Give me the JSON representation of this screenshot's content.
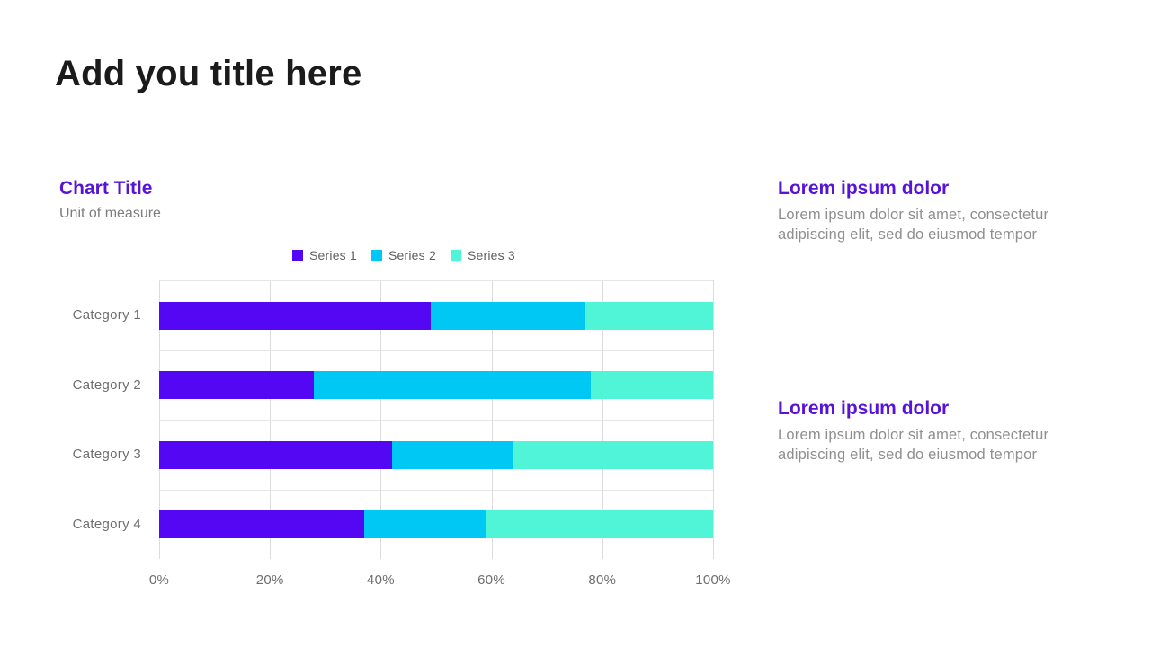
{
  "page": {
    "title": "Add you title here"
  },
  "chart": {
    "title": "Chart Title",
    "subtitle": "Unit of measure"
  },
  "chart_data": {
    "type": "bar",
    "orientation": "horizontal",
    "stacked": true,
    "title": "Chart Title",
    "unit_label": "Unit of measure",
    "categories": [
      "Category 1",
      "Category 2",
      "Category 3",
      "Category 4"
    ],
    "series": [
      {
        "name": "Series 1",
        "color": "#5307f2",
        "values": [
          49,
          28,
          42,
          37
        ]
      },
      {
        "name": "Series 2",
        "color": "#00c8f5",
        "values": [
          28,
          50,
          22,
          22
        ]
      },
      {
        "name": "Series 3",
        "color": "#50f5d8",
        "values": [
          23,
          22,
          36,
          41
        ]
      }
    ],
    "x_tick_labels": [
      "0%",
      "20%",
      "40%",
      "60%",
      "80%",
      "100%"
    ],
    "xlim": [
      0,
      100
    ],
    "xlabel": "",
    "ylabel": "",
    "grid": true,
    "legend_position": "top-center"
  },
  "sidebar": {
    "blocks": [
      {
        "heading": "Lorem ipsum dolor",
        "body": "Lorem ipsum dolor sit amet, consectetur adipiscing elit, sed do eiusmod tempor"
      },
      {
        "heading": "Lorem ipsum dolor",
        "body": "Lorem ipsum dolor sit amet, consectetur adipiscing elit, sed do eiusmod tempor"
      }
    ]
  }
}
